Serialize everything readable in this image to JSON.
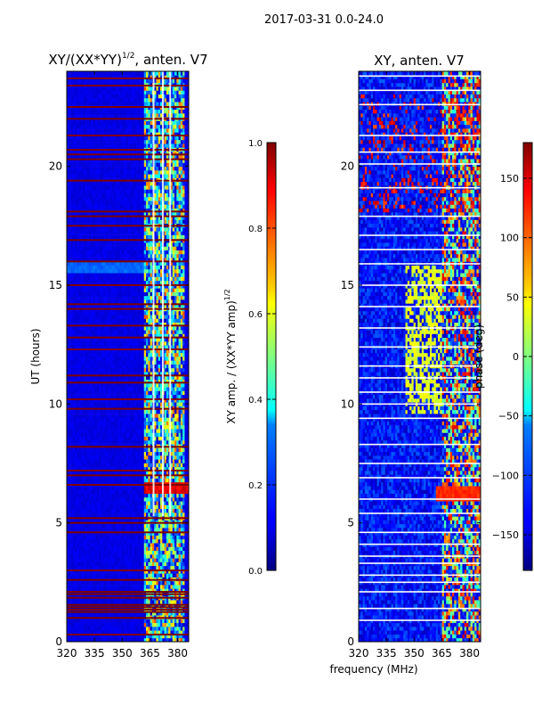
{
  "suptitle": "2017-03-31 0.0-24.0",
  "colors": {
    "background": "#ffffff",
    "axes": "#000000"
  },
  "chart_data": [
    {
      "type": "heatmap",
      "title_main": "XY/(XX*YY)",
      "title_exp": "1/2",
      "title_tail": ", anten. V7",
      "xlabel": "",
      "ylabel": "UT (hours)",
      "xlim": [
        320,
        386
      ],
      "ylim": [
        0,
        24
      ],
      "xticks": [
        320,
        335,
        350,
        365,
        380
      ],
      "yticks": [
        0,
        5,
        10,
        15,
        20
      ],
      "colormap": "jet",
      "colorbar": {
        "label_main": "XY amp. / (XX*YY amp)",
        "label_exp": "1/2",
        "range": [
          0.0,
          1.0
        ],
        "ticks": [
          "0.0",
          "0.2",
          "0.4",
          "0.6",
          "0.8",
          "1.0"
        ],
        "tick_values": [
          0.0,
          0.2,
          0.4,
          0.6,
          0.8,
          1.0
        ]
      },
      "features": {
        "base_value": 0.1,
        "valid_band_mhz": [
          362,
          384
        ],
        "saturated_rows_ut": [
          0.3,
          1.0,
          1.25,
          1.35,
          1.45,
          1.55,
          1.85,
          2.0,
          2.1,
          2.6,
          3.0,
          4.6,
          5.0,
          5.2,
          6.6,
          7.0,
          7.2,
          8.2,
          9.8,
          10.2,
          10.9,
          11.2,
          12.3,
          12.8,
          13.3,
          14.0,
          14.2,
          15.0,
          16.0,
          16.9,
          17.5,
          17.9,
          18.1,
          19.4,
          20.3,
          20.5,
          20.7,
          21.3,
          22.0,
          22.5,
          23.4,
          23.7
        ],
        "bright_band_ut": [
          15.5,
          16.0
        ],
        "white_column_mhz": [
          367,
          372,
          376
        ]
      }
    },
    {
      "type": "heatmap",
      "title_main": "XY, anten. V7",
      "xlabel": "frequency (MHz)",
      "ylabel": "",
      "xlim": [
        320,
        386
      ],
      "ylim": [
        0,
        24
      ],
      "xticks": [
        320,
        335,
        350,
        365,
        380
      ],
      "yticks": [
        0,
        5,
        10,
        15,
        20
      ],
      "colormap": "jet",
      "colorbar": {
        "label_main": "phase (deg)",
        "range": [
          -180,
          180
        ],
        "ticks": [
          "150",
          "100",
          "50",
          "0",
          "−50",
          "−100",
          "−150"
        ],
        "tick_values": [
          150,
          100,
          50,
          0,
          -50,
          -100,
          -150
        ]
      },
      "features": {
        "base_value": -130,
        "white_rows_ut": [
          0.9,
          1.4,
          2.1,
          2.5,
          2.8,
          3.3,
          3.6,
          4.1,
          4.6,
          5.4,
          6.0,
          6.9,
          7.5,
          8.3,
          9.4,
          10.0,
          10.5,
          11.1,
          11.6,
          12.4,
          13.2,
          14.1,
          15.0,
          15.9,
          16.5,
          17.1,
          17.9,
          19.1,
          20.1,
          20.6,
          21.3,
          22.6,
          23.2,
          23.8
        ],
        "green_band_ut": [
          9.6,
          15.8
        ],
        "orange_band_ut": [
          5.9,
          6.5
        ]
      }
    }
  ]
}
